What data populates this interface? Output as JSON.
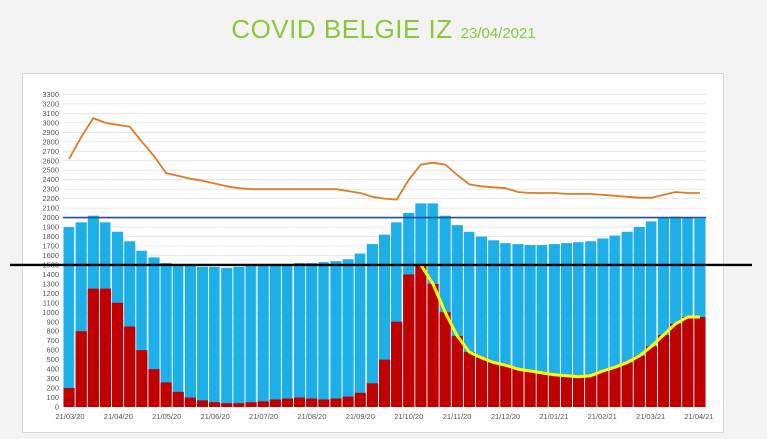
{
  "page": {
    "title": "COVID BELGIE IZ",
    "date": "23/04/2021"
  },
  "chart_data": {
    "type": "bar",
    "title": "COVID BELGIE IZ",
    "ylim": [
      0,
      3400
    ],
    "y_ticks": [
      0,
      100,
      200,
      300,
      400,
      500,
      600,
      700,
      800,
      900,
      1000,
      1100,
      1200,
      1300,
      1400,
      1500,
      1600,
      1700,
      1800,
      1900,
      2000,
      2100,
      2200,
      2300,
      2400,
      2500,
      2600,
      2700,
      2800,
      2900,
      3000,
      3100,
      3200,
      3300
    ],
    "x_tick_labels": [
      "21/03/20",
      "21/04/20",
      "21/05/20",
      "21/06/20",
      "21/07/20",
      "21/08/20",
      "21/09/20",
      "21/10/20",
      "21/11/20",
      "21/12/20",
      "21/01/21",
      "21/02/21",
      "21/03/21",
      "21/04/21"
    ],
    "x": [
      "21/03/20",
      "28/03/20",
      "04/04/20",
      "11/04/20",
      "21/04/20",
      "28/04/20",
      "05/05/20",
      "12/05/20",
      "21/05/20",
      "28/05/20",
      "04/06/20",
      "11/06/20",
      "21/06/20",
      "28/06/20",
      "05/07/20",
      "12/07/20",
      "21/07/20",
      "28/07/20",
      "04/08/20",
      "11/08/20",
      "21/08/20",
      "28/08/20",
      "04/09/20",
      "11/09/20",
      "21/09/20",
      "28/09/20",
      "05/10/20",
      "12/10/20",
      "21/10/20",
      "28/10/20",
      "04/11/20",
      "11/11/20",
      "21/11/20",
      "28/11/20",
      "05/12/20",
      "12/12/20",
      "21/12/20",
      "28/12/20",
      "04/01/21",
      "11/01/21",
      "21/01/21",
      "28/01/21",
      "04/02/21",
      "11/02/21",
      "21/02/21",
      "28/02/21",
      "07/03/21",
      "14/03/21",
      "21/03/21",
      "28/03/21",
      "04/04/21",
      "11/04/21",
      "21/04/21"
    ],
    "series": [
      {
        "color": "#e07b22",
        "kind": "line",
        "values": [
          2620,
          2850,
          3050,
          3000,
          2980,
          2960,
          2800,
          2650,
          2470,
          2440,
          2410,
          2390,
          2360,
          2330,
          2310,
          2300,
          2300,
          2300,
          2300,
          2300,
          2300,
          2300,
          2300,
          2280,
          2260,
          2220,
          2200,
          2190,
          2400,
          2560,
          2580,
          2560,
          2450,
          2350,
          2330,
          2320,
          2310,
          2270,
          2260,
          2260,
          2260,
          2250,
          2250,
          2250,
          2240,
          2230,
          2220,
          2210,
          2210,
          2240,
          2270,
          2260,
          2260
        ]
      },
      {
        "color": "#1eaee8",
        "kind": "bar",
        "values": [
          1900,
          1950,
          2020,
          1950,
          1850,
          1750,
          1650,
          1580,
          1520,
          1500,
          1490,
          1480,
          1480,
          1470,
          1480,
          1490,
          1500,
          1510,
          1510,
          1520,
          1520,
          1530,
          1540,
          1560,
          1620,
          1720,
          1820,
          1950,
          2050,
          2150,
          2150,
          2020,
          1920,
          1850,
          1800,
          1760,
          1730,
          1720,
          1710,
          1710,
          1720,
          1730,
          1740,
          1750,
          1780,
          1810,
          1850,
          1900,
          1960,
          2000,
          2010,
          2000,
          1990
        ]
      },
      {
        "color": "#c00000",
        "kind": "bar",
        "values": [
          200,
          800,
          1250,
          1250,
          1100,
          850,
          600,
          400,
          260,
          160,
          100,
          70,
          50,
          40,
          40,
          50,
          60,
          80,
          90,
          100,
          90,
          80,
          90,
          110,
          150,
          250,
          500,
          900,
          1400,
          1500,
          1300,
          1000,
          750,
          580,
          520,
          470,
          440,
          400,
          380,
          360,
          340,
          330,
          320,
          330,
          380,
          420,
          470,
          540,
          640,
          760,
          880,
          950,
          950
        ]
      },
      {
        "color": "#ffff00",
        "kind": "line",
        "values": [
          null,
          null,
          null,
          null,
          null,
          null,
          null,
          null,
          null,
          null,
          null,
          null,
          null,
          null,
          null,
          null,
          null,
          null,
          null,
          null,
          null,
          null,
          null,
          null,
          null,
          null,
          null,
          null,
          null,
          1500,
          1300,
          1000,
          750,
          580,
          520,
          470,
          440,
          400,
          380,
          360,
          340,
          330,
          320,
          330,
          380,
          420,
          470,
          540,
          640,
          760,
          880,
          950,
          950
        ]
      }
    ],
    "reference_lines": [
      {
        "value": 2000,
        "color": "#1f4e9a"
      },
      {
        "value": 1500,
        "color": "#000000"
      }
    ],
    "grid": true
  }
}
